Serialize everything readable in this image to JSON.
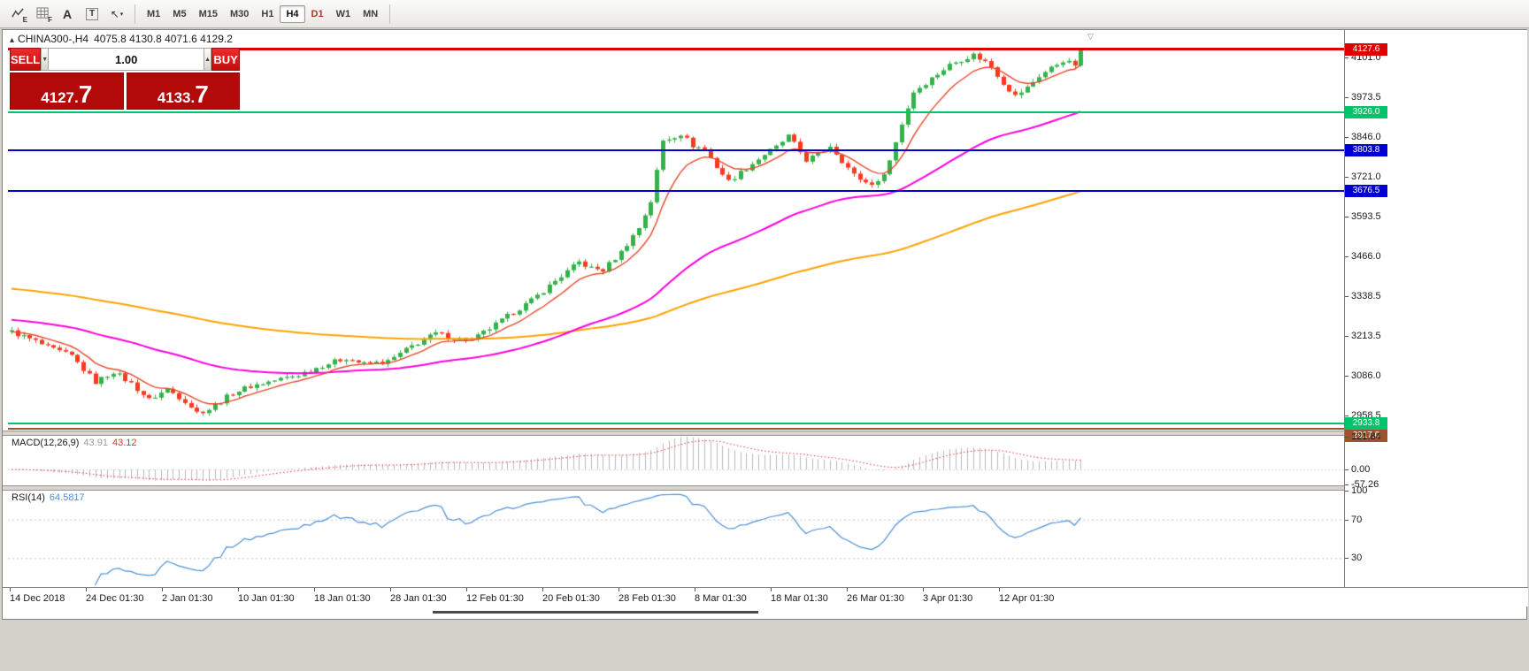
{
  "toolbar": {
    "icons": [
      {
        "name": "indicator-tool",
        "letter": "E"
      },
      {
        "name": "grid-tool",
        "letter": "F"
      },
      {
        "name": "font-tool",
        "letter": "A"
      },
      {
        "name": "text-label-tool",
        "letter": "T"
      },
      {
        "name": "cursor-tool",
        "glyph": "↖",
        "caret": "▾"
      }
    ],
    "timeframes": [
      {
        "label": "M1",
        "active": false
      },
      {
        "label": "M5",
        "active": false
      },
      {
        "label": "M15",
        "active": false
      },
      {
        "label": "M30",
        "active": false
      },
      {
        "label": "H1",
        "active": false
      },
      {
        "label": "H4",
        "active": true
      },
      {
        "label": "D1",
        "active": false,
        "red": true
      },
      {
        "label": "W1",
        "active": false
      },
      {
        "label": "MN",
        "active": false
      }
    ]
  },
  "icons": {
    "collapse_triangle": "▴",
    "shift_marker": "▽"
  },
  "chart": {
    "symbol_timeframe": "CHINA300-,H4",
    "ohlc_text": "4075.8 4130.8 4071.6 4129.2"
  },
  "trade_panel": {
    "sell_label": "SELL",
    "buy_label": "BUY",
    "volume": "1.00",
    "spin_down_glyph": "▼",
    "spin_up_glyph": "▲",
    "sell_price_main": "4127.",
    "sell_price_big": "7",
    "buy_price_main": "4133.",
    "buy_price_big": "7"
  },
  "price_scale": {
    "ticks": [
      "4101.0",
      "3973.5",
      "3846.0",
      "3721.0",
      "3593.5",
      "3466.0",
      "3338.5",
      "3213.5",
      "3086.0",
      "2958.5"
    ],
    "badges": [
      {
        "label": "4127.6",
        "price": 4127.6,
        "color": "#e00000",
        "lw": 3
      },
      {
        "label": "3926.0",
        "price": 3926.0,
        "color": "#00c46a",
        "lw": 2
      },
      {
        "label": "3803.8",
        "price": 3803.8,
        "color": "#0000d4",
        "lw": 2
      },
      {
        "label": "3676.5",
        "price": 3676.5,
        "color": "#0000d4",
        "lw": 2
      },
      {
        "label": "2933.8",
        "price": 2933.8,
        "color": "#00c46a",
        "lw": 2
      },
      {
        "label": "2917.0",
        "price": 2917.0,
        "color": "#a0522d",
        "lw": 2
      }
    ]
  },
  "macd": {
    "name_label": "MACD(12,26,9)",
    "value_main": "43.91",
    "value_signal": "43.12",
    "scale": [
      "121.84",
      "0.00",
      "-57.26"
    ]
  },
  "rsi": {
    "name_label": "RSI(14)",
    "value": "64.5817",
    "scale": [
      "100",
      "70",
      "30"
    ]
  },
  "time_axis": [
    "14 Dec 2018",
    "24 Dec 01:30",
    "2 Jan 01:30",
    "10 Jan 01:30",
    "18 Jan 01:30",
    "28 Jan 01:30",
    "12 Feb 01:30",
    "20 Feb 01:30",
    "28 Feb 01:30",
    "8 Mar 01:30",
    "18 Mar 01:30",
    "26 Mar 01:30",
    "3 Apr 01:30",
    "12 Apr 01:30"
  ],
  "chart_data": {
    "type": "candlestick",
    "symbol": "CHINA300-",
    "timeframe": "H4",
    "last_ohlc": {
      "open": 4075.8,
      "high": 4130.8,
      "low": 4071.6,
      "close": 4129.2
    },
    "horizontal_levels": [
      4127.6,
      3926.0,
      3803.8,
      3676.5,
      2933.8,
      2917.0
    ],
    "y_axis": {
      "min": 2910,
      "max": 4189
    },
    "candle_count": 180,
    "noise_amplitude": 8,
    "wick_max": 10,
    "price_anchors": [
      [
        0,
        3225
      ],
      [
        4,
        3195
      ],
      [
        6,
        3175
      ],
      [
        10,
        3148
      ],
      [
        12,
        3105
      ],
      [
        14,
        3065
      ],
      [
        17,
        3098
      ],
      [
        20,
        3060
      ],
      [
        23,
        3008
      ],
      [
        26,
        3042
      ],
      [
        29,
        3005
      ],
      [
        31,
        2968
      ],
      [
        33,
        2978
      ],
      [
        37,
        3030
      ],
      [
        40,
        3052
      ],
      [
        44,
        3070
      ],
      [
        48,
        3088
      ],
      [
        52,
        3118
      ],
      [
        56,
        3142
      ],
      [
        59,
        3122
      ],
      [
        63,
        3130
      ],
      [
        67,
        3180
      ],
      [
        71,
        3220
      ],
      [
        74,
        3205
      ],
      [
        77,
        3198
      ],
      [
        81,
        3248
      ],
      [
        84,
        3288
      ],
      [
        87,
        3325
      ],
      [
        91,
        3388
      ],
      [
        95,
        3448
      ],
      [
        97,
        3428
      ],
      [
        99,
        3422
      ],
      [
        102,
        3480
      ],
      [
        105,
        3558
      ],
      [
        107,
        3642
      ],
      [
        109,
        3835
      ],
      [
        112,
        3858
      ],
      [
        114,
        3820
      ],
      [
        116,
        3808
      ],
      [
        118,
        3752
      ],
      [
        120,
        3706
      ],
      [
        123,
        3748
      ],
      [
        126,
        3792
      ],
      [
        128,
        3815
      ],
      [
        130,
        3850
      ],
      [
        133,
        3774
      ],
      [
        135,
        3792
      ],
      [
        137,
        3820
      ],
      [
        139,
        3772
      ],
      [
        141,
        3726
      ],
      [
        143,
        3702
      ],
      [
        145,
        3700
      ],
      [
        147,
        3772
      ],
      [
        149,
        3890
      ],
      [
        151,
        3992
      ],
      [
        154,
        4035
      ],
      [
        157,
        4078
      ],
      [
        159,
        4095
      ],
      [
        161,
        4110
      ],
      [
        163,
        4088
      ],
      [
        164,
        4072
      ],
      [
        166,
        4020
      ],
      [
        168,
        3978
      ],
      [
        170,
        4005
      ],
      [
        172,
        4042
      ],
      [
        174,
        4068
      ],
      [
        176,
        4092
      ],
      [
        178,
        4076
      ],
      [
        179,
        4129.2
      ]
    ],
    "colors": {
      "bull": "#33b34a",
      "bear": "#fb3a20"
    },
    "ma": [
      {
        "name": "slow",
        "period": 150,
        "seed": 3365,
        "color": "#ffa200",
        "width": 2
      },
      {
        "name": "medium",
        "period": 55,
        "seed": 3265,
        "color": "#ff00dc",
        "width": 2
      },
      {
        "name": "fast",
        "period": 9,
        "seed": 3225,
        "color": "#e8482a",
        "width": 1.4
      }
    ],
    "macd": {
      "fast": 12,
      "slow": 26,
      "signal": 9,
      "current": 43.91,
      "current_signal": 43.12,
      "scale_max": 121.84,
      "scale_min": -57.26,
      "histogram_color": "#b9b9b9",
      "signal_color": "#e03030"
    },
    "rsi": {
      "period": 14,
      "current": 64.5817,
      "levels": [
        70,
        30
      ],
      "color": "#4a90d9"
    }
  }
}
